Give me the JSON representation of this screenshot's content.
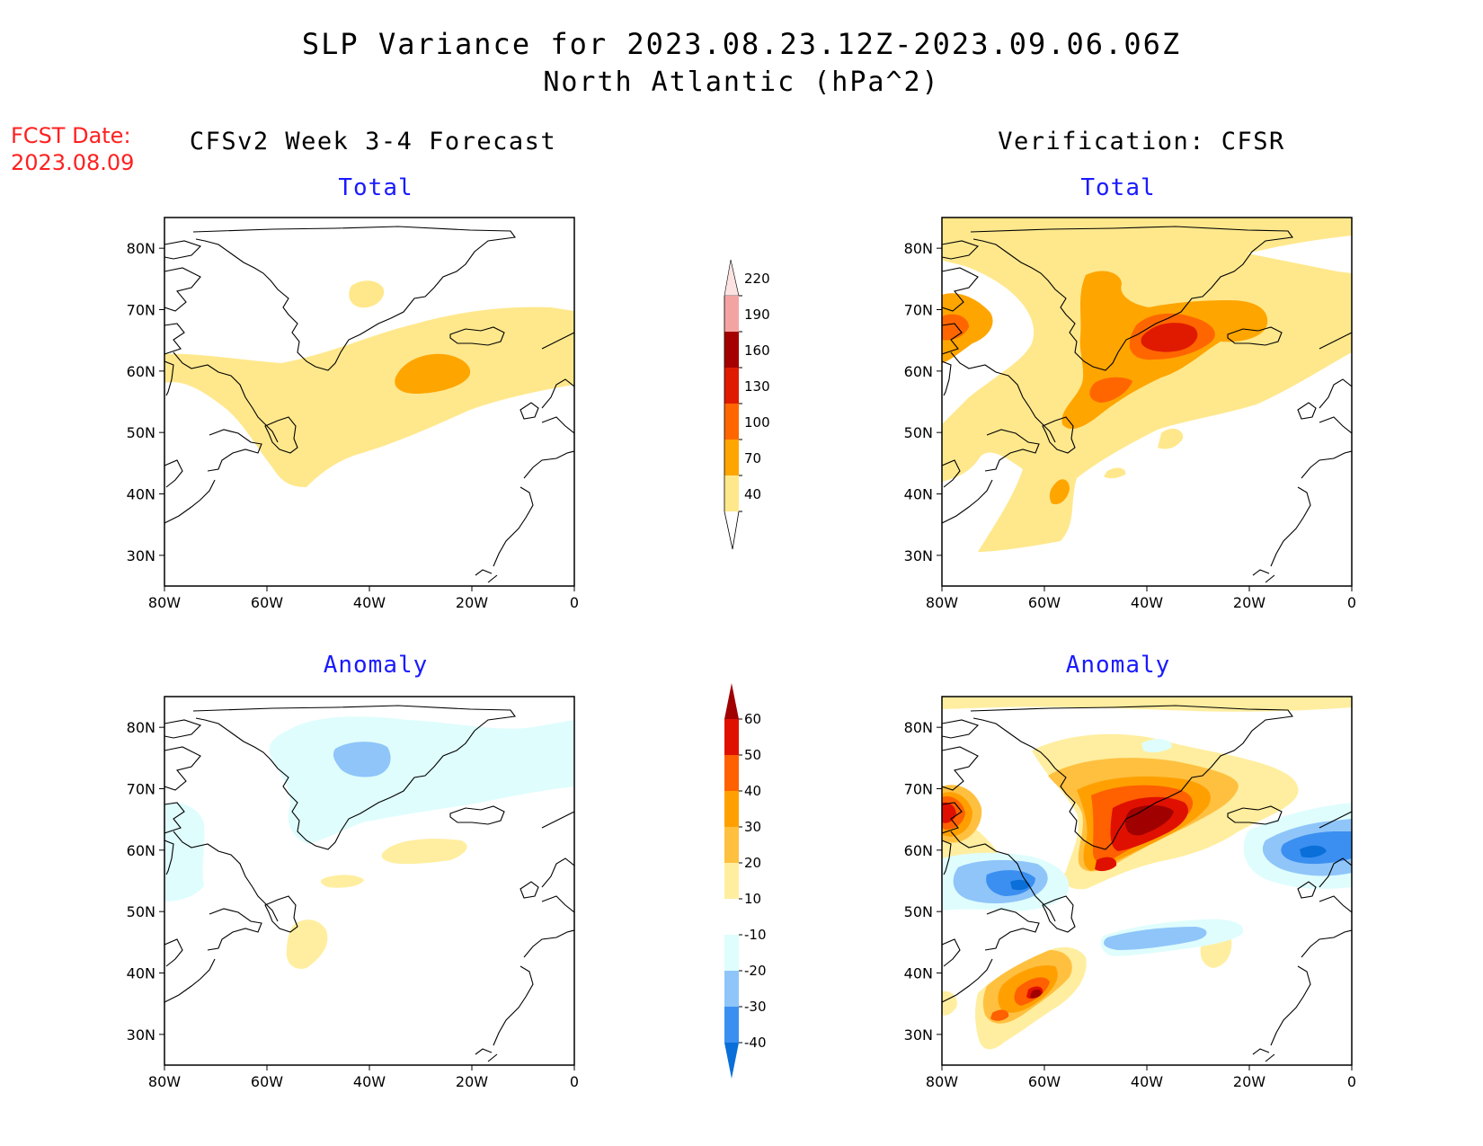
{
  "header": {
    "title": "SLP Variance for 2023.08.23.12Z-2023.09.06.06Z",
    "subtitle": "North Atlantic (hPa^2)",
    "fcst_label": "FCST Date:",
    "fcst_date": "2023.08.09"
  },
  "columns": {
    "left": "CFSv2 Week 3-4 Forecast",
    "right": "Verification: CFSR"
  },
  "panels": {
    "total_label": "Total",
    "anomaly_label": "Anomaly"
  },
  "axes": {
    "lat_labels": [
      "80N",
      "70N",
      "60N",
      "50N",
      "40N",
      "30N"
    ],
    "lon_labels": [
      "80W",
      "60W",
      "40W",
      "20W",
      "0"
    ],
    "lon_range": [
      -80,
      0
    ],
    "lat_range": [
      25,
      85
    ]
  },
  "colorbars": {
    "total": {
      "levels": [
        "40",
        "70",
        "100",
        "130",
        "160",
        "190",
        "220"
      ],
      "colors": [
        "#ffe88c",
        "#ffa500",
        "#ff6600",
        "#e01a00",
        "#a50000",
        "#f4a3a3",
        "#fde2e2"
      ]
    },
    "anomaly": {
      "levels": [
        "-40",
        "-30",
        "-20",
        "-10",
        "10",
        "20",
        "30",
        "40",
        "50",
        "60"
      ],
      "colors": [
        "#0a6fd8",
        "#3b8ff0",
        "#8fc5f9",
        "#dffdfd",
        "#ffffff",
        "#ffee9f",
        "#ffc040",
        "#ffa000",
        "#ff6000",
        "#e01000",
        "#a00000"
      ]
    }
  },
  "chart_data": {
    "type": "heatmap",
    "field": "SLP variance",
    "units": "hPa^2",
    "region": "North Atlantic",
    "panels": [
      {
        "name": "CFSv2 Week 3-4 Forecast - Total",
        "features": [
          {
            "level": "40-70",
            "region": "band from Labrador Sea across the North Atlantic to 0E, approx 45N-65N"
          },
          {
            "level": "40-70",
            "region": "small area over central Greenland near 70N, 42W"
          },
          {
            "level": "70-100",
            "region": "core centered near 58N, 27W"
          }
        ]
      },
      {
        "name": "Verification: CFSR - Total",
        "features": [
          {
            "level": "40-70",
            "region": "broad coverage 40N-85N between 80W and 0"
          },
          {
            "level": "70-100",
            "region": "Denmark Strait / Irminger Sea, 52N-73N, 55W-20W; Baffin Bay near 65N, 75W"
          },
          {
            "level": "100-130",
            "region": "centered near 63N, 35W and 57N, 43W"
          },
          {
            "level": "130-160",
            "region": "core near 64N, 33W"
          }
        ]
      },
      {
        "name": "CFSv2 Week 3-4 Forecast - Anomaly",
        "features": [
          {
            "level": "-20 to -10",
            "region": "Greenland and Nordic Seas, 60N-80N"
          },
          {
            "level": "-30 to -20",
            "region": "small core near 75N, 40W"
          },
          {
            "level": "10-20",
            "region": "near 60N, 30W; near 55N, 42W; near 45N, 52W"
          }
        ]
      },
      {
        "name": "Verification: CFSR - Anomaly",
        "features": [
          {
            "level": ">60",
            "region": "core near 64N, 33W"
          },
          {
            "level": "30-60",
            "region": "Irminger Sea and Baffin Bay, 55N-70N"
          },
          {
            "level": "40-60",
            "region": "off US east coast near 37N, 62W"
          },
          {
            "level": "-40 to -30",
            "region": "near 53N, 65W and near 61N, 7W"
          },
          {
            "level": "-20 to -10",
            "region": "band near 50N, 50W-25W"
          }
        ]
      }
    ]
  }
}
